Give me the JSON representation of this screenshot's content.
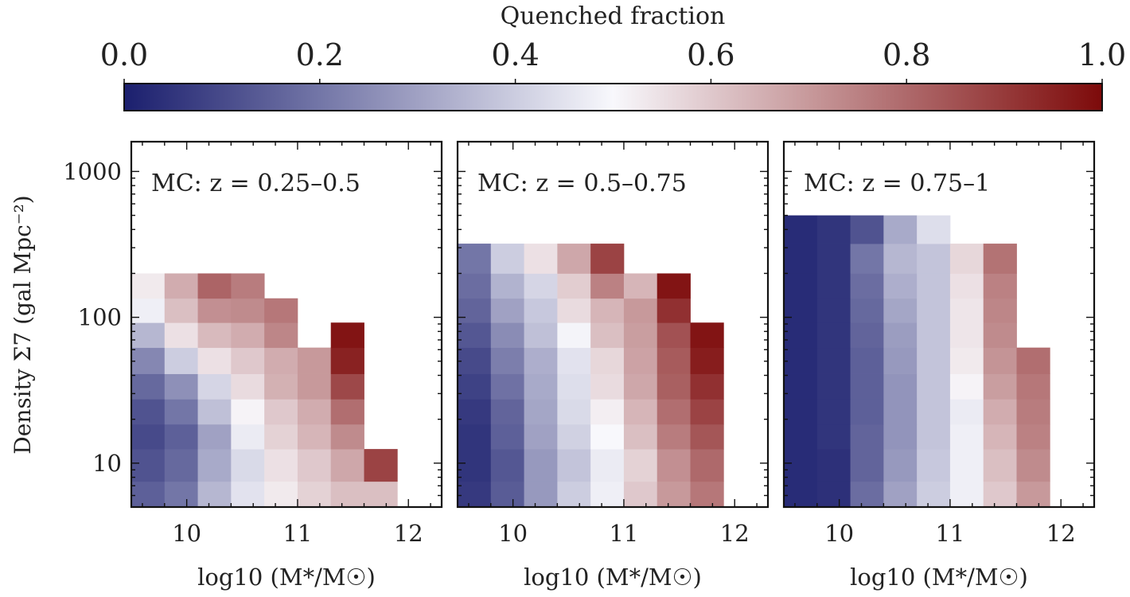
{
  "colorbar": {
    "label": "Quenched fraction",
    "range": [
      0.0,
      1.0
    ],
    "ticks": [
      "0.0",
      "0.2",
      "0.4",
      "0.6",
      "0.8",
      "1.0"
    ],
    "colormap": "seismic-like diverging",
    "colors": {
      "low": "#1b1f6e",
      "mid": "#f8f8fc",
      "high": "#7d0a0a"
    }
  },
  "shared_axes": {
    "ylabel": "Density Σ7 (gal Mpc⁻²)",
    "xlabel": "log10 (M*/M☉)",
    "xticks": [
      "10",
      "11",
      "12"
    ],
    "yticks": [
      "10",
      "100",
      "1000"
    ]
  },
  "chart_data": [
    {
      "type": "heatmap",
      "title": "MC: z = 0.25–0.5",
      "xlim": [
        9.5,
        12.3
      ],
      "ylim": [
        5,
        1600
      ],
      "yscale": "log",
      "x_edges": [
        9.5,
        9.8,
        10.1,
        10.4,
        10.7,
        11.0,
        11.3,
        11.6,
        11.9
      ],
      "y_edges": [
        5,
        7.5,
        12.5,
        18.5,
        27.5,
        41,
        62,
        92,
        135,
        200
      ],
      "cells": [
        [
          0.15,
          0.2,
          0.35,
          0.45,
          0.53,
          0.58,
          0.62,
          0.62
        ],
        [
          0.12,
          0.17,
          0.32,
          0.43,
          0.55,
          0.6,
          0.67,
          0.88
        ],
        [
          0.1,
          0.15,
          0.3,
          0.47,
          0.58,
          0.64,
          0.73,
          null
        ],
        [
          0.12,
          0.2,
          0.37,
          0.51,
          0.6,
          0.66,
          0.79,
          null
        ],
        [
          0.17,
          0.26,
          0.42,
          0.56,
          0.65,
          0.7,
          0.87,
          null
        ],
        [
          0.24,
          0.4,
          0.55,
          0.6,
          0.66,
          0.7,
          0.95,
          null
        ],
        [
          0.35,
          0.55,
          0.63,
          0.66,
          0.74,
          null,
          0.98,
          null
        ],
        [
          0.48,
          0.62,
          0.72,
          0.73,
          0.77,
          null,
          null,
          null
        ],
        [
          0.53,
          0.66,
          0.81,
          0.76,
          null,
          null,
          null,
          null
        ]
      ]
    },
    {
      "type": "heatmap",
      "title": "MC: z = 0.5–0.75",
      "xlim": [
        9.5,
        12.3
      ],
      "ylim": [
        5,
        1600
      ],
      "yscale": "log",
      "x_edges": [
        9.5,
        9.8,
        10.1,
        10.4,
        10.7,
        11.0,
        11.3,
        11.6,
        11.9
      ],
      "y_edges": [
        5,
        7.5,
        12.5,
        18.5,
        27.5,
        41,
        62,
        92,
        135,
        200,
        320
      ],
      "cells": [
        [
          0.06,
          0.14,
          0.28,
          0.4,
          0.48,
          0.6,
          0.7,
          0.77
        ],
        [
          0.05,
          0.13,
          0.28,
          0.38,
          0.47,
          0.58,
          0.72,
          0.8
        ],
        [
          0.05,
          0.15,
          0.3,
          0.41,
          0.5,
          0.62,
          0.76,
          0.84
        ],
        [
          0.06,
          0.16,
          0.31,
          0.43,
          0.52,
          0.64,
          0.79,
          0.88
        ],
        [
          0.08,
          0.19,
          0.32,
          0.44,
          0.56,
          0.67,
          0.82,
          0.92
        ],
        [
          0.1,
          0.22,
          0.33,
          0.45,
          0.57,
          0.68,
          0.83,
          0.96
        ],
        [
          0.13,
          0.25,
          0.37,
          0.49,
          0.62,
          0.69,
          0.85,
          0.98
        ],
        [
          0.16,
          0.3,
          0.39,
          0.56,
          0.64,
          0.7,
          0.92,
          null
        ],
        [
          0.18,
          0.34,
          0.42,
          0.59,
          0.75,
          0.64,
          0.98,
          null
        ],
        [
          0.2,
          0.4,
          0.55,
          0.67,
          0.88,
          null,
          null,
          null
        ]
      ]
    },
    {
      "type": "heatmap",
      "title": "MC: z = 0.75–1",
      "xlim": [
        9.5,
        12.3
      ],
      "ylim": [
        5,
        1600
      ],
      "yscale": "log",
      "x_edges": [
        9.5,
        9.8,
        10.1,
        10.4,
        10.7,
        11.0,
        11.3,
        11.6,
        11.9
      ],
      "y_edges": [
        5,
        7.5,
        12.5,
        18.5,
        27.5,
        41,
        62,
        92,
        135,
        200,
        320,
        500
      ],
      "cells": [
        [
          0.03,
          0.04,
          0.18,
          0.3,
          0.4,
          0.48,
          0.6,
          0.7
        ],
        [
          0.03,
          0.04,
          0.16,
          0.28,
          0.39,
          0.48,
          0.62,
          0.73
        ],
        [
          0.03,
          0.05,
          0.16,
          0.27,
          0.38,
          0.48,
          0.64,
          0.75
        ],
        [
          0.03,
          0.05,
          0.15,
          0.27,
          0.38,
          0.47,
          0.66,
          0.76
        ],
        [
          0.03,
          0.05,
          0.15,
          0.27,
          0.38,
          0.51,
          0.69,
          0.77
        ],
        [
          0.03,
          0.05,
          0.15,
          0.28,
          0.38,
          0.53,
          0.71,
          0.79
        ],
        [
          0.03,
          0.05,
          0.16,
          0.29,
          0.38,
          0.54,
          0.73,
          null
        ],
        [
          0.03,
          0.05,
          0.17,
          0.31,
          0.38,
          0.54,
          0.74,
          null
        ],
        [
          0.03,
          0.05,
          0.18,
          0.33,
          0.38,
          0.55,
          0.75,
          null
        ],
        [
          0.03,
          0.05,
          0.2,
          0.35,
          0.38,
          0.57,
          0.78,
          null
        ],
        [
          0.03,
          0.05,
          0.12,
          0.32,
          0.44,
          null,
          null,
          null
        ]
      ]
    }
  ]
}
